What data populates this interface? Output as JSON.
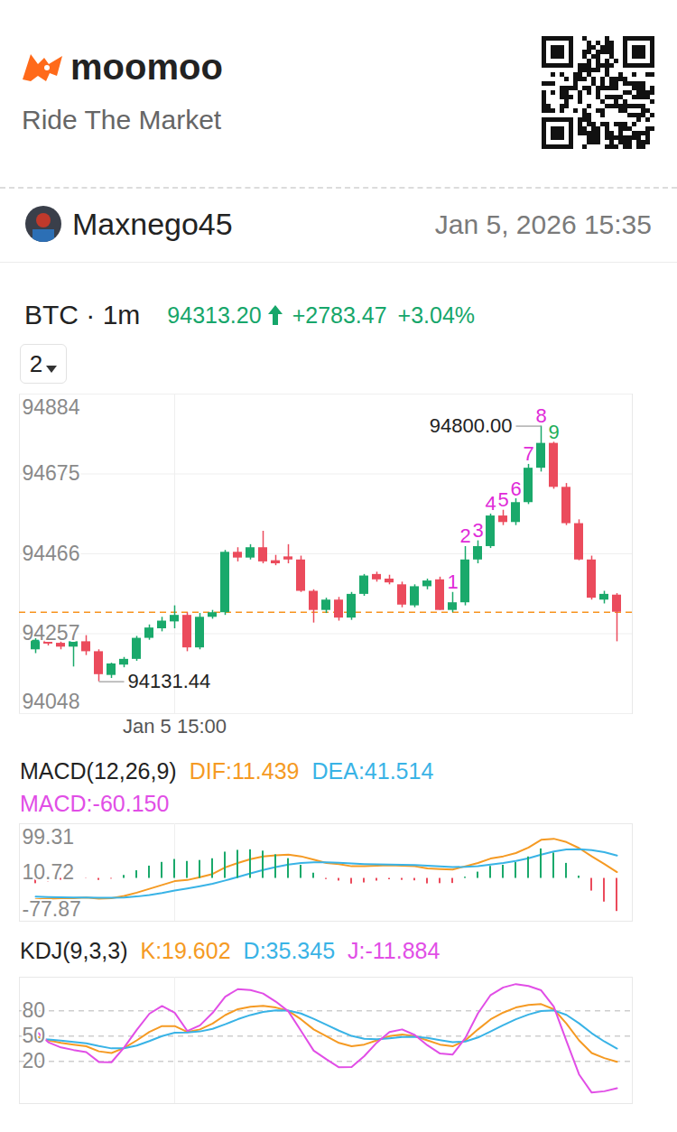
{
  "header": {
    "brand": "moomoo",
    "slogan": "Ride The Market"
  },
  "post": {
    "user": "Maxnego45",
    "date": "Jan 5, 2026 15:35"
  },
  "quote": {
    "symbol": "BTC · 1m",
    "price": "94313.20",
    "change": "+2783.47",
    "change_percent": "+3.04%",
    "color": "#16a66a"
  },
  "selector": {
    "label": "2"
  },
  "chart_data": [
    {
      "type": "candlestick",
      "categories": [
        null,
        null,
        null,
        null,
        null,
        null,
        null,
        null,
        null,
        null,
        null,
        "Jan 5 15:00",
        null,
        null,
        null,
        null,
        null,
        null,
        null,
        null,
        null,
        null,
        null,
        null,
        null,
        null,
        null,
        null,
        null,
        null,
        null,
        null,
        null,
        null,
        null,
        null,
        null,
        null,
        null,
        null,
        null,
        null,
        null,
        null,
        null,
        null,
        null
      ],
      "open": [
        94215,
        94240,
        94232,
        94222,
        94236,
        94210,
        94148,
        94175,
        94190,
        94245,
        94270,
        94288,
        94305,
        94220,
        94300,
        94312,
        94470,
        94455,
        94482,
        94448,
        94458,
        94450,
        94368,
        94318,
        94345,
        94298,
        94360,
        94412,
        94400,
        94385,
        94330,
        94380,
        94398,
        94318,
        94338,
        94450,
        94485,
        94565,
        94548,
        94600,
        94690,
        94755,
        94640,
        94545,
        94450,
        94345,
        94358
      ],
      "high": [
        94250,
        94248,
        94240,
        94245,
        94252,
        94215,
        94180,
        94195,
        94250,
        94280,
        94300,
        94330,
        94312,
        94310,
        94318,
        94475,
        94482,
        94490,
        94525,
        94462,
        94490,
        94460,
        94372,
        94350,
        94352,
        94365,
        94412,
        94418,
        94410,
        94392,
        94385,
        94400,
        94405,
        94365,
        94485,
        94500,
        94570,
        94580,
        94610,
        94700,
        94800,
        94758,
        94650,
        94555,
        94460,
        94368,
        94362
      ],
      "low": [
        94205,
        94225,
        94215,
        94170,
        94200,
        94131.44,
        94140,
        94168,
        94185,
        94240,
        94262,
        94270,
        94210,
        94215,
        94295,
        94305,
        94445,
        94450,
        94440,
        94435,
        94440,
        94365,
        94285,
        94310,
        94290,
        94292,
        94355,
        94392,
        94385,
        94325,
        94325,
        94372,
        94318,
        94312,
        94330,
        94440,
        94480,
        94540,
        94540,
        94595,
        94680,
        94635,
        94540,
        94448,
        94345,
        94335,
        94236
      ],
      "close": [
        94240,
        94230,
        94222,
        94236,
        94210,
        94150,
        94178,
        94190,
        94245,
        94272,
        94290,
        94305,
        94220,
        94300,
        94312,
        94470,
        94455,
        94482,
        94445,
        94440,
        94450,
        94368,
        94318,
        94345,
        94298,
        94360,
        94408,
        94398,
        94390,
        94332,
        94380,
        94395,
        94318,
        94338,
        94450,
        94485,
        94565,
        94548,
        94600,
        94690,
        94755,
        94640,
        94545,
        94450,
        94350,
        94360,
        94313.2
      ],
      "ylim": [
        94048,
        94884
      ],
      "yticks": [
        94048,
        94257,
        94466,
        94675,
        94884
      ],
      "grid": true,
      "last_price": {
        "value": 94313.2,
        "color": "#f7931e",
        "line_style": "dashed"
      },
      "annotations": [
        {
          "label": "94800.00",
          "index": 40,
          "value": 94800
        },
        {
          "label": "94131.44",
          "index": 5,
          "value": 94131.44
        }
      ],
      "td_counts": [
        {
          "index": 33,
          "label": "1",
          "color": "#e02bd8"
        },
        {
          "index": 34,
          "label": "2",
          "color": "#e02bd8"
        },
        {
          "index": 35,
          "label": "3",
          "color": "#e02bd8"
        },
        {
          "index": 36,
          "label": "4",
          "color": "#e02bd8"
        },
        {
          "index": 37,
          "label": "5",
          "color": "#e02bd8"
        },
        {
          "index": 38,
          "label": "6",
          "color": "#e02bd8"
        },
        {
          "index": 39,
          "label": "7",
          "color": "#e02bd8"
        },
        {
          "index": 40,
          "label": "8",
          "color": "#e02bd8"
        },
        {
          "index": 41,
          "label": "9",
          "color": "#1fae5a"
        }
      ]
    },
    {
      "type": "macd",
      "title": "MACD(12,26,9)",
      "series": [
        {
          "name": "DIF:11.439",
          "type": "line",
          "color": "#f59a23",
          "values": [
            -38,
            -37,
            -36,
            -36,
            -35,
            -37,
            -36,
            -32,
            -26,
            -19,
            -12,
            -5,
            -3,
            2,
            8,
            20,
            28,
            35,
            40,
            42,
            43,
            40,
            34,
            28,
            26,
            22,
            22,
            23,
            24,
            23,
            22,
            18,
            17,
            16,
            22,
            28,
            36,
            40,
            46,
            56,
            70,
            72,
            66,
            55,
            40,
            26,
            11.439
          ]
        },
        {
          "name": "DEA:41.514",
          "type": "line",
          "color": "#39b3e6",
          "values": [
            -33.2,
            -33.96,
            -34.37,
            -34.7,
            -34.76,
            -35.2,
            -35.36,
            -34.69,
            -32.95,
            -30.16,
            -26.53,
            -22.22,
            -18.38,
            -14.3,
            -9.84,
            -3.87,
            2.5,
            9,
            15.2,
            20.56,
            25.05,
            28.04,
            29.23,
            28.99,
            28.39,
            27.11,
            26.09,
            25.47,
            25.18,
            24.74,
            24.19,
            22.95,
            21.76,
            20.61,
            20.89,
            22.31,
            25.05,
            28.04,
            31.63,
            36.5,
            43.2,
            48.96,
            52.37,
            52.9,
            51.5,
            47.5,
            41.514
          ]
        },
        {
          "name": "MACD:-60.150",
          "type": "bar",
          "color": "#e14ee6",
          "values": [
            -9.6,
            -6.1,
            -3.3,
            -2.6,
            -0.5,
            -3.6,
            -1.3,
            5.4,
            13.9,
            22.3,
            29.1,
            34.4,
            30.8,
            32.6,
            35.7,
            47.7,
            51,
            52,
            49.6,
            42.9,
            35.9,
            23.9,
            9.5,
            -2,
            -4.8,
            -10.2,
            -8.2,
            -4.9,
            -2.4,
            -3.5,
            -4.4,
            -9.9,
            -9.5,
            -9.2,
            2.2,
            11.4,
            21.9,
            23.9,
            28.7,
            39,
            53.6,
            46.1,
            27.3,
            4.2,
            -23,
            -43,
            -60.15
          ]
        }
      ],
      "ylim": [
        -77.87,
        99.31
      ],
      "yticks": [
        -77.87,
        10.72,
        99.31
      ],
      "grid": false
    },
    {
      "type": "kdj",
      "title": "KDJ(9,3,3)",
      "series": [
        {
          "name": "K:19.602",
          "type": "line",
          "color": "#f59a23",
          "values": [
            50,
            45,
            42,
            40,
            38,
            32,
            30,
            36,
            45,
            55,
            62,
            62,
            55,
            58,
            65,
            75,
            82,
            85,
            86,
            84,
            80,
            70,
            58,
            50,
            42,
            38,
            40,
            45,
            50,
            52,
            50,
            45,
            40,
            38,
            45,
            58,
            70,
            78,
            84,
            87,
            88,
            82,
            65,
            45,
            30,
            24,
            19.602
          ]
        },
        {
          "name": "D:35.345",
          "type": "line",
          "color": "#39b3e6",
          "values": [
            46.7,
            46.1,
            44.7,
            43.2,
            41.5,
            38.3,
            35.5,
            35.7,
            38.8,
            44.2,
            50.1,
            54.1,
            54.4,
            55.6,
            58.7,
            64.1,
            70.1,
            75.1,
            78.7,
            80.5,
            80.3,
            76.9,
            70.6,
            63.7,
            56.5,
            50.3,
            46.9,
            46.3,
            47.5,
            49,
            49.3,
            47.9,
            45.3,
            42.9,
            43.6,
            48.4,
            55.6,
            63.1,
            70.1,
            75.7,
            79.8,
            80.5,
            75.3,
            65.2,
            53.5,
            43.7,
            35.345
          ]
        },
        {
          "name": "J:-11.884",
          "type": "line",
          "color": "#e14ee6",
          "values": [
            56.6,
            42.8,
            36.6,
            33.6,
            31,
            19.4,
            19,
            36.6,
            57.4,
            76.6,
            85.8,
            77.8,
            56.2,
            62.8,
            77.6,
            96.8,
            105.8,
            104.8,
            100.6,
            91,
            79.4,
            56.2,
            32.8,
            22.6,
            13,
            13.4,
            26.2,
            42.4,
            55,
            58,
            51.4,
            39.2,
            29.4,
            28.2,
            47.8,
            77.2,
            98.8,
            107.8,
            111.8,
            109.6,
            104.4,
            85,
            44.4,
            4.6,
            -17,
            -15.4,
            -11.884
          ]
        }
      ],
      "ylim": [
        -30,
        120
      ],
      "yticks": [
        20,
        50,
        80
      ],
      "grid": true
    }
  ]
}
